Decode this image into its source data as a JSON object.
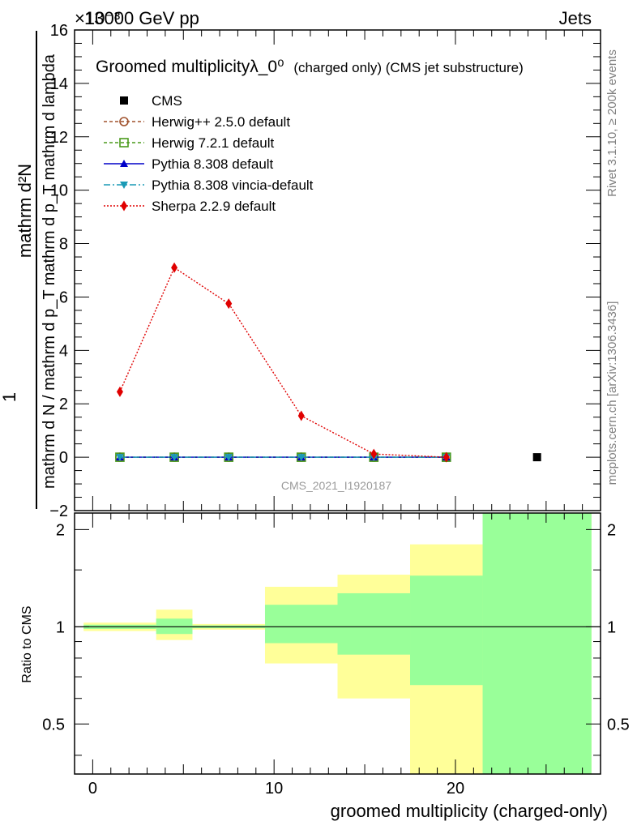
{
  "header": {
    "energy_label": "13000 GeV pp",
    "category_label": "Jets",
    "exponent_label": "×10⁻³"
  },
  "side": {
    "rivet_label": "Rivet 3.1.10, ≥ 200k events",
    "mcplots_label": "mcplots.cern.ch [arXiv:1306.3436]"
  },
  "colors": {
    "cms": "#000000",
    "herwig_pp": "#a0522d",
    "herwig7": "#4a9a1c",
    "pythia": "#0000c8",
    "vincia": "#1a9ab5",
    "sherpa": "#e00000",
    "band_outer": "#ffff99",
    "band_inner": "#99ff99"
  },
  "chart_data": [
    {
      "type": "line",
      "title": "Groomed multiplicityλ_0⁰",
      "title_suffix": "(charged only) (CMS jet substructure)",
      "ylabel_top": "mathrm d²N",
      "ylabel_numer_one": "1",
      "ylabel_bottom": "mathrm d N / mathrm d p_T mathrm d p_T mathrm d lambda",
      "ylabel_sub_T": "T",
      "watermark": "CMS_2021_I1920187",
      "ylim": [
        -2,
        16
      ],
      "xlim": [
        -1,
        28
      ],
      "yticks": [
        "−2",
        "0",
        "2",
        "4",
        "6",
        "8",
        "10",
        "12",
        "14",
        "16"
      ],
      "ytick_values": [
        -2,
        0,
        2,
        4,
        6,
        8,
        10,
        12,
        14,
        16
      ],
      "x": [
        1.5,
        4.5,
        7.5,
        11.5,
        15.5,
        19.5
      ],
      "series": [
        {
          "name": "CMS",
          "key": "cms",
          "x": [
            24.5
          ],
          "values": [
            0
          ]
        },
        {
          "name": "Herwig++ 2.5.0 default",
          "key": "herwig_pp",
          "values": [
            0,
            0,
            0,
            0,
            0,
            0
          ]
        },
        {
          "name": "Herwig 7.2.1 default",
          "key": "herwig7",
          "values": [
            0,
            0,
            0,
            0,
            0,
            0
          ]
        },
        {
          "name": "Pythia 8.308 default",
          "key": "pythia",
          "values": [
            0,
            0,
            0,
            0,
            0,
            0
          ]
        },
        {
          "name": "Pythia 8.308 vincia-default",
          "key": "vincia",
          "values": [
            0,
            0,
            0,
            0,
            0,
            0
          ]
        },
        {
          "name": "Sherpa 2.2.9 default",
          "key": "sherpa",
          "values": [
            2.45,
            7.1,
            5.75,
            1.55,
            0.12,
            0.0
          ]
        }
      ]
    },
    {
      "type": "area",
      "ylabel": "Ratio to CMS",
      "xlabel": "groomed multiplicity (charged-only)",
      "ylim": [
        0.35,
        2.25
      ],
      "xlim": [
        -1,
        28
      ],
      "xticks": [
        "0",
        "10",
        "20"
      ],
      "xtick_values": [
        0,
        10,
        20
      ],
      "yticks": [
        "0.5",
        "1",
        "2"
      ],
      "ytick_values": [
        0.5,
        1,
        2
      ],
      "bins": [
        {
          "lo": -0.5,
          "hi": 3.5,
          "outer": [
            0.97,
            1.03
          ],
          "inner": [
            0.985,
            1.015
          ]
        },
        {
          "lo": 3.5,
          "hi": 5.5,
          "outer": [
            0.91,
            1.13
          ],
          "inner": [
            0.95,
            1.06
          ]
        },
        {
          "lo": 5.5,
          "hi": 9.5,
          "outer": [
            0.98,
            1.02
          ],
          "inner": [
            0.99,
            1.01
          ]
        },
        {
          "lo": 9.5,
          "hi": 13.5,
          "outer": [
            0.77,
            1.33
          ],
          "inner": [
            0.89,
            1.17
          ]
        },
        {
          "lo": 13.5,
          "hi": 17.5,
          "outer": [
            0.6,
            1.45
          ],
          "inner": [
            0.82,
            1.27
          ]
        },
        {
          "lo": 17.5,
          "hi": 21.5,
          "outer": [
            0.35,
            1.8
          ],
          "inner": [
            0.66,
            1.44
          ]
        },
        {
          "lo": 21.5,
          "hi": 27.5,
          "outer": [
            0.35,
            2.25
          ],
          "inner": [
            0.35,
            2.25
          ]
        }
      ]
    }
  ]
}
